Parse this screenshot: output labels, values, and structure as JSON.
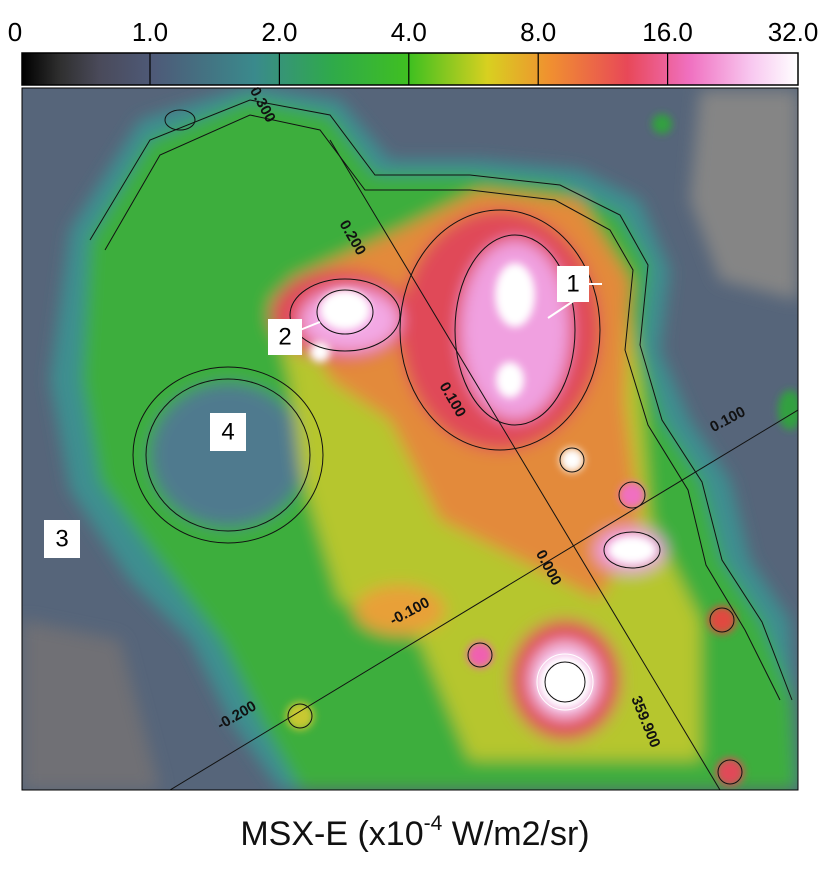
{
  "colorbar": {
    "ticks": [
      "0",
      "1.0",
      "2.0",
      "4.0",
      "8.0",
      "16.0",
      "32.0"
    ]
  },
  "image": {
    "source_labels": [
      "1",
      "2",
      "3",
      "4"
    ],
    "coordinate_labels": [
      "0.300",
      "0.200",
      "0.100",
      "0.000",
      "359.900",
      "0.100",
      "-0.100",
      "-0.200"
    ]
  },
  "caption": {
    "text": "MSX-E (x10",
    "superscript": "-4",
    "unit": " W/m2/sr)"
  }
}
